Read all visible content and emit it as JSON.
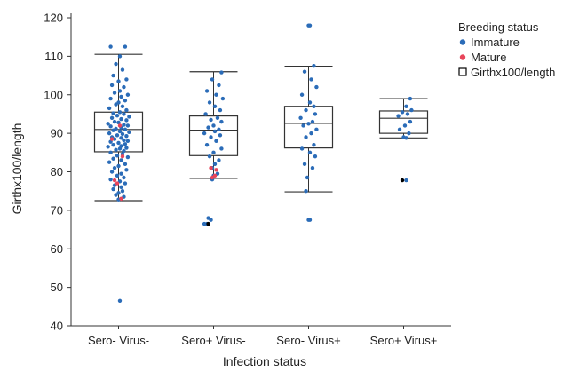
{
  "chart_data": {
    "type": "boxplot",
    "title": "",
    "xlabel": "Infection status",
    "ylabel": "Girthx100/length",
    "ylim": [
      40,
      120
    ],
    "yticks": [
      40,
      50,
      60,
      70,
      80,
      90,
      100,
      110,
      120
    ],
    "categories": [
      "Sero- Virus-",
      "Sero+ Virus-",
      "Sero- Virus+",
      "Sero+ Virus+"
    ],
    "boxes": [
      {
        "category": "Sero- Virus-",
        "whisker_low": 72.5,
        "q1": 85.2,
        "median": 91,
        "q3": 95.5,
        "whisker_high": 110.5
      },
      {
        "category": "Sero+ Virus-",
        "whisker_low": 78.3,
        "q1": 84.2,
        "median": 90.8,
        "q3": 94.5,
        "whisker_high": 106
      },
      {
        "category": "Sero- Virus+",
        "whisker_low": 74.8,
        "q1": 86.2,
        "median": 92.6,
        "q3": 97,
        "whisker_high": 107.4
      },
      {
        "category": "Sero+ Virus+",
        "whisker_low": 88.8,
        "q1": 90,
        "median": 93.9,
        "q3": 95.8,
        "whisker_high": 99
      }
    ],
    "points": {
      "Immature": [
        [
          [
            -0.3,
            112.5
          ],
          [
            0.25,
            112.5
          ],
          [
            0.05,
            110
          ],
          [
            -0.1,
            108
          ],
          [
            0.15,
            106.5
          ],
          [
            -0.2,
            105
          ],
          [
            0.3,
            104
          ],
          [
            0,
            103.5
          ],
          [
            -0.25,
            102.5
          ],
          [
            0.2,
            102
          ],
          [
            0.05,
            101
          ],
          [
            -0.15,
            100.5
          ],
          [
            0.35,
            100
          ],
          [
            0.1,
            99.5
          ],
          [
            -0.3,
            99
          ],
          [
            0.25,
            98.5
          ],
          [
            0,
            98
          ],
          [
            -0.1,
            97.5
          ],
          [
            0.15,
            97
          ],
          [
            -0.35,
            96.5
          ],
          [
            0.3,
            96
          ],
          [
            0.05,
            95.5
          ],
          [
            -0.2,
            95.2
          ],
          [
            0.2,
            95
          ],
          [
            -0.05,
            94.6
          ],
          [
            0.4,
            94.3
          ],
          [
            -0.25,
            94
          ],
          [
            0.1,
            93.7
          ],
          [
            0.3,
            93.4
          ],
          [
            -0.15,
            93
          ],
          [
            0.0,
            92.8
          ],
          [
            -0.4,
            92.5
          ],
          [
            0.2,
            92.2
          ],
          [
            0.35,
            92
          ],
          [
            -0.3,
            91.8
          ],
          [
            0.1,
            91.5
          ],
          [
            -0.1,
            91.2
          ],
          [
            0.25,
            91
          ],
          [
            -0.2,
            90.8
          ],
          [
            0.05,
            90.5
          ],
          [
            0.4,
            90.3
          ],
          [
            -0.35,
            90
          ],
          [
            0.15,
            89.8
          ],
          [
            -0.05,
            89.5
          ],
          [
            0.3,
            89.3
          ],
          [
            -0.25,
            89
          ],
          [
            0.1,
            88.8
          ],
          [
            -0.15,
            88.5
          ],
          [
            0.2,
            88.2
          ],
          [
            0.35,
            88
          ],
          [
            -0.3,
            87.8
          ],
          [
            0,
            87.5
          ],
          [
            0.25,
            87.2
          ],
          [
            -0.2,
            87
          ],
          [
            0.1,
            86.7
          ],
          [
            -0.4,
            86.5
          ],
          [
            0.3,
            86.2
          ],
          [
            0.05,
            86
          ],
          [
            -0.1,
            85.7
          ],
          [
            0.2,
            85.4
          ],
          [
            -0.3,
            85
          ],
          [
            0.15,
            84.6
          ],
          [
            -0.05,
            84.2
          ],
          [
            0.35,
            83.8
          ],
          [
            -0.2,
            83.4
          ],
          [
            0.1,
            83
          ],
          [
            -0.35,
            82.5
          ],
          [
            0.25,
            82
          ],
          [
            0,
            81.5
          ],
          [
            -0.15,
            81
          ],
          [
            0.3,
            80.5
          ],
          [
            -0.25,
            80
          ],
          [
            0.1,
            79.5
          ],
          [
            -0.05,
            79
          ],
          [
            0.2,
            78.5
          ],
          [
            -0.3,
            78
          ],
          [
            0.05,
            77.5
          ],
          [
            0.25,
            77
          ],
          [
            -0.15,
            76.5
          ],
          [
            0.1,
            76
          ],
          [
            -0.2,
            75.5
          ],
          [
            0.15,
            75
          ],
          [
            0,
            74.5
          ],
          [
            -0.1,
            74
          ],
          [
            0.2,
            73.5
          ],
          [
            0.1,
            73
          ],
          [
            0.0,
            72.8
          ],
          [
            0.05,
            46.5
          ]
        ],
        [
          [
            0.3,
            105.8
          ],
          [
            -0.05,
            104
          ],
          [
            0.2,
            102.5
          ],
          [
            -0.25,
            101
          ],
          [
            0.1,
            100
          ],
          [
            0.35,
            99
          ],
          [
            -0.15,
            98
          ],
          [
            0.05,
            97
          ],
          [
            0.25,
            96
          ],
          [
            -0.3,
            95
          ],
          [
            0.15,
            94
          ],
          [
            -0.1,
            93.5
          ],
          [
            0.3,
            93
          ],
          [
            0,
            92
          ],
          [
            -0.2,
            91.5
          ],
          [
            0.2,
            91
          ],
          [
            0.05,
            90.5
          ],
          [
            -0.35,
            90
          ],
          [
            0.25,
            89.5
          ],
          [
            -0.1,
            89
          ],
          [
            0.1,
            88
          ],
          [
            -0.25,
            87
          ],
          [
            0.3,
            86
          ],
          [
            0,
            85
          ],
          [
            -0.15,
            84
          ],
          [
            0.2,
            83
          ],
          [
            0.05,
            82
          ],
          [
            -0.05,
            81
          ],
          [
            0.15,
            79.5
          ],
          [
            0.0,
            79
          ],
          [
            -0.05,
            78
          ],
          [
            -0.2,
            68
          ],
          [
            -0.1,
            67.5
          ],
          [
            -0.35,
            66.5
          ],
          [
            -0.25,
            66.5
          ]
        ],
        [
          [
            0.0,
            118
          ],
          [
            0.05,
            118
          ],
          [
            0.2,
            107.5
          ],
          [
            -0.15,
            106
          ],
          [
            0.1,
            104
          ],
          [
            0.3,
            102
          ],
          [
            -0.25,
            100
          ],
          [
            0.05,
            98
          ],
          [
            0.2,
            97
          ],
          [
            -0.1,
            96
          ],
          [
            0.25,
            95
          ],
          [
            -0.3,
            94
          ],
          [
            0.15,
            93
          ],
          [
            0,
            92.5
          ],
          [
            -0.2,
            92
          ],
          [
            0.3,
            91
          ],
          [
            0.1,
            90
          ],
          [
            -0.1,
            89
          ],
          [
            0.2,
            87
          ],
          [
            -0.25,
            86
          ],
          [
            0.05,
            85
          ],
          [
            0.25,
            84
          ],
          [
            -0.15,
            82
          ],
          [
            0.15,
            81
          ],
          [
            -0.05,
            78.5
          ],
          [
            -0.1,
            75
          ],
          [
            0.0,
            67.5
          ],
          [
            0.05,
            67.5
          ]
        ],
        [
          [
            0.25,
            99
          ],
          [
            0.1,
            97
          ],
          [
            0.3,
            96
          ],
          [
            -0.05,
            95.5
          ],
          [
            0.15,
            95
          ],
          [
            -0.2,
            94.5
          ],
          [
            0.25,
            93
          ],
          [
            0.05,
            92
          ],
          [
            -0.15,
            91
          ],
          [
            0.2,
            90
          ],
          [
            0.0,
            89
          ],
          [
            0.1,
            88.8
          ],
          [
            0.1,
            77.8
          ]
        ]
      ],
      "Mature": [
        [
          [
            0.05,
            92
          ],
          [
            -0.25,
            88.5
          ],
          [
            0.15,
            84
          ],
          [
            -0.15,
            77.8
          ],
          [
            -0.05,
            77
          ],
          [
            0.1,
            73
          ]
        ],
        [
          [
            -0.1,
            81
          ],
          [
            0.1,
            80.5
          ],
          [
            0.05,
            79
          ],
          [
            -0.05,
            78.5
          ]
        ],
        [],
        []
      ],
      "Girthx100/length": [
        [],
        [
          [
            -0.2,
            66.5
          ]
        ],
        [],
        [
          [
            -0.05,
            77.8
          ]
        ]
      ]
    },
    "legend": {
      "title": "Breeding status",
      "placement": "top-right",
      "entries": [
        {
          "label": "Immature",
          "color": "#2b6cb8",
          "marker": "dot"
        },
        {
          "label": "Mature",
          "color": "#e8455a",
          "marker": "dot"
        },
        {
          "label": "Girthx100/length",
          "color": "#000000",
          "marker": "box"
        }
      ]
    },
    "grid": false
  }
}
